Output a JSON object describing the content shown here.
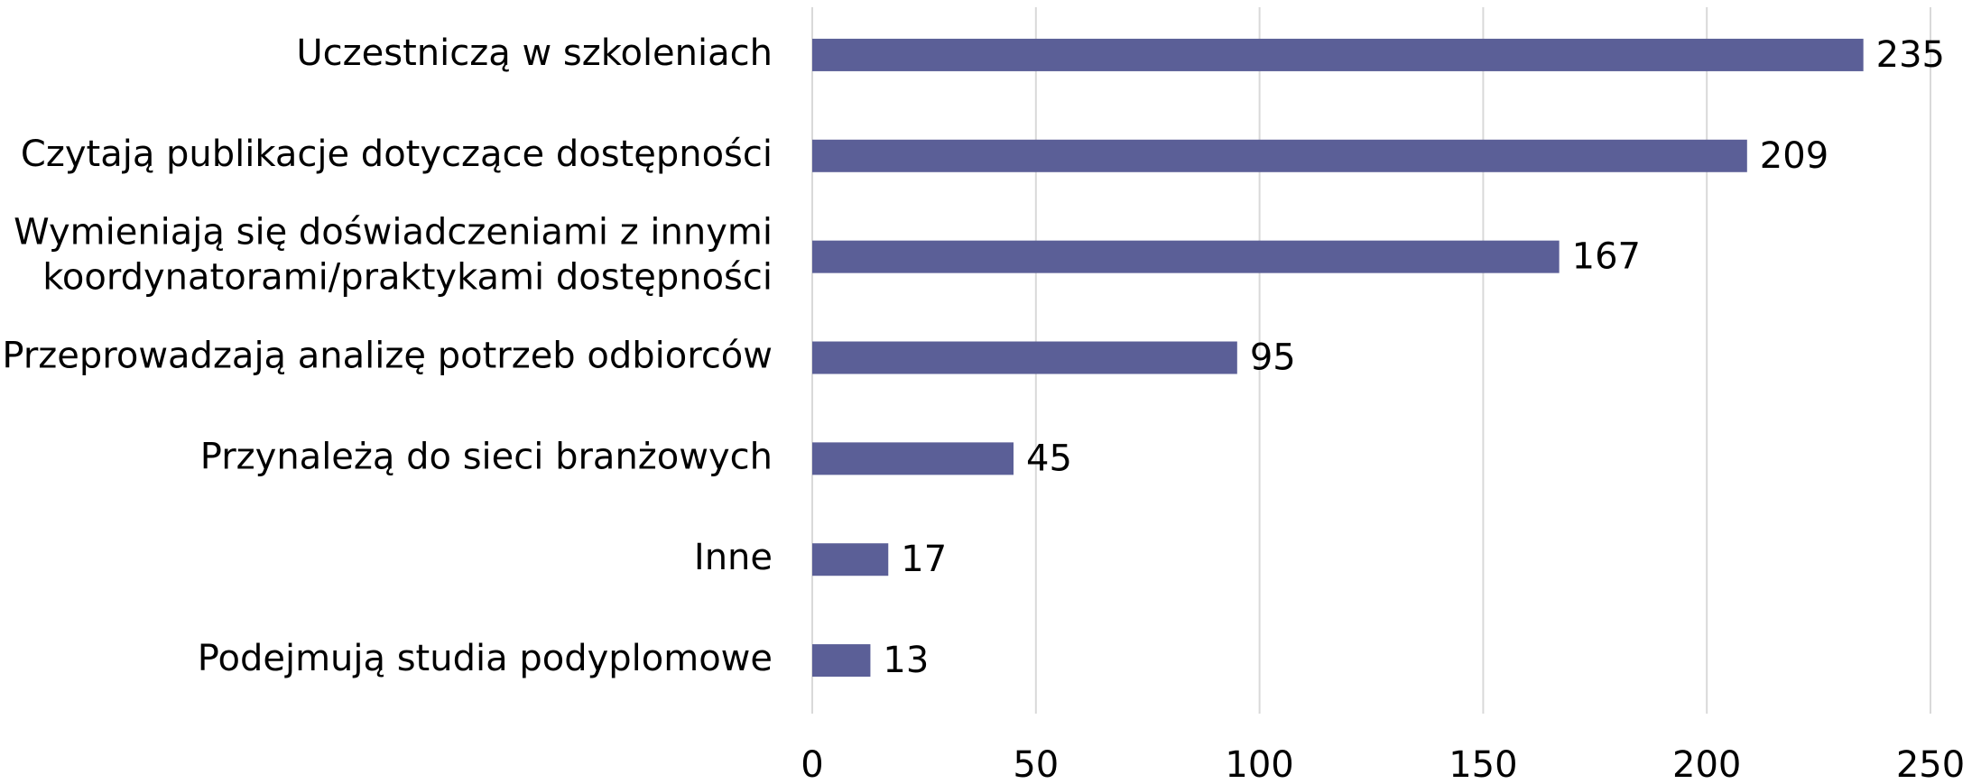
{
  "chart_data": {
    "type": "bar",
    "orientation": "horizontal",
    "categories": [
      "Uczestniczą w szkoleniach",
      "Czytają publikacje dotyczące dostępności",
      "Wymieniają się doświadczeniami z innymi\nkoordynatorami/praktykami dostępności",
      "Przeprowadzają analizę potrzeb odbiorców",
      "Przynależą do sieci branżowych",
      "Inne",
      "Podejmują studia podyplomowe"
    ],
    "values": [
      235,
      209,
      167,
      95,
      45,
      17,
      13
    ],
    "color": "#5b5f97",
    "xlim": [
      0,
      250
    ],
    "xticks": [
      0,
      50,
      100,
      150,
      200,
      250
    ],
    "grid": true
  }
}
